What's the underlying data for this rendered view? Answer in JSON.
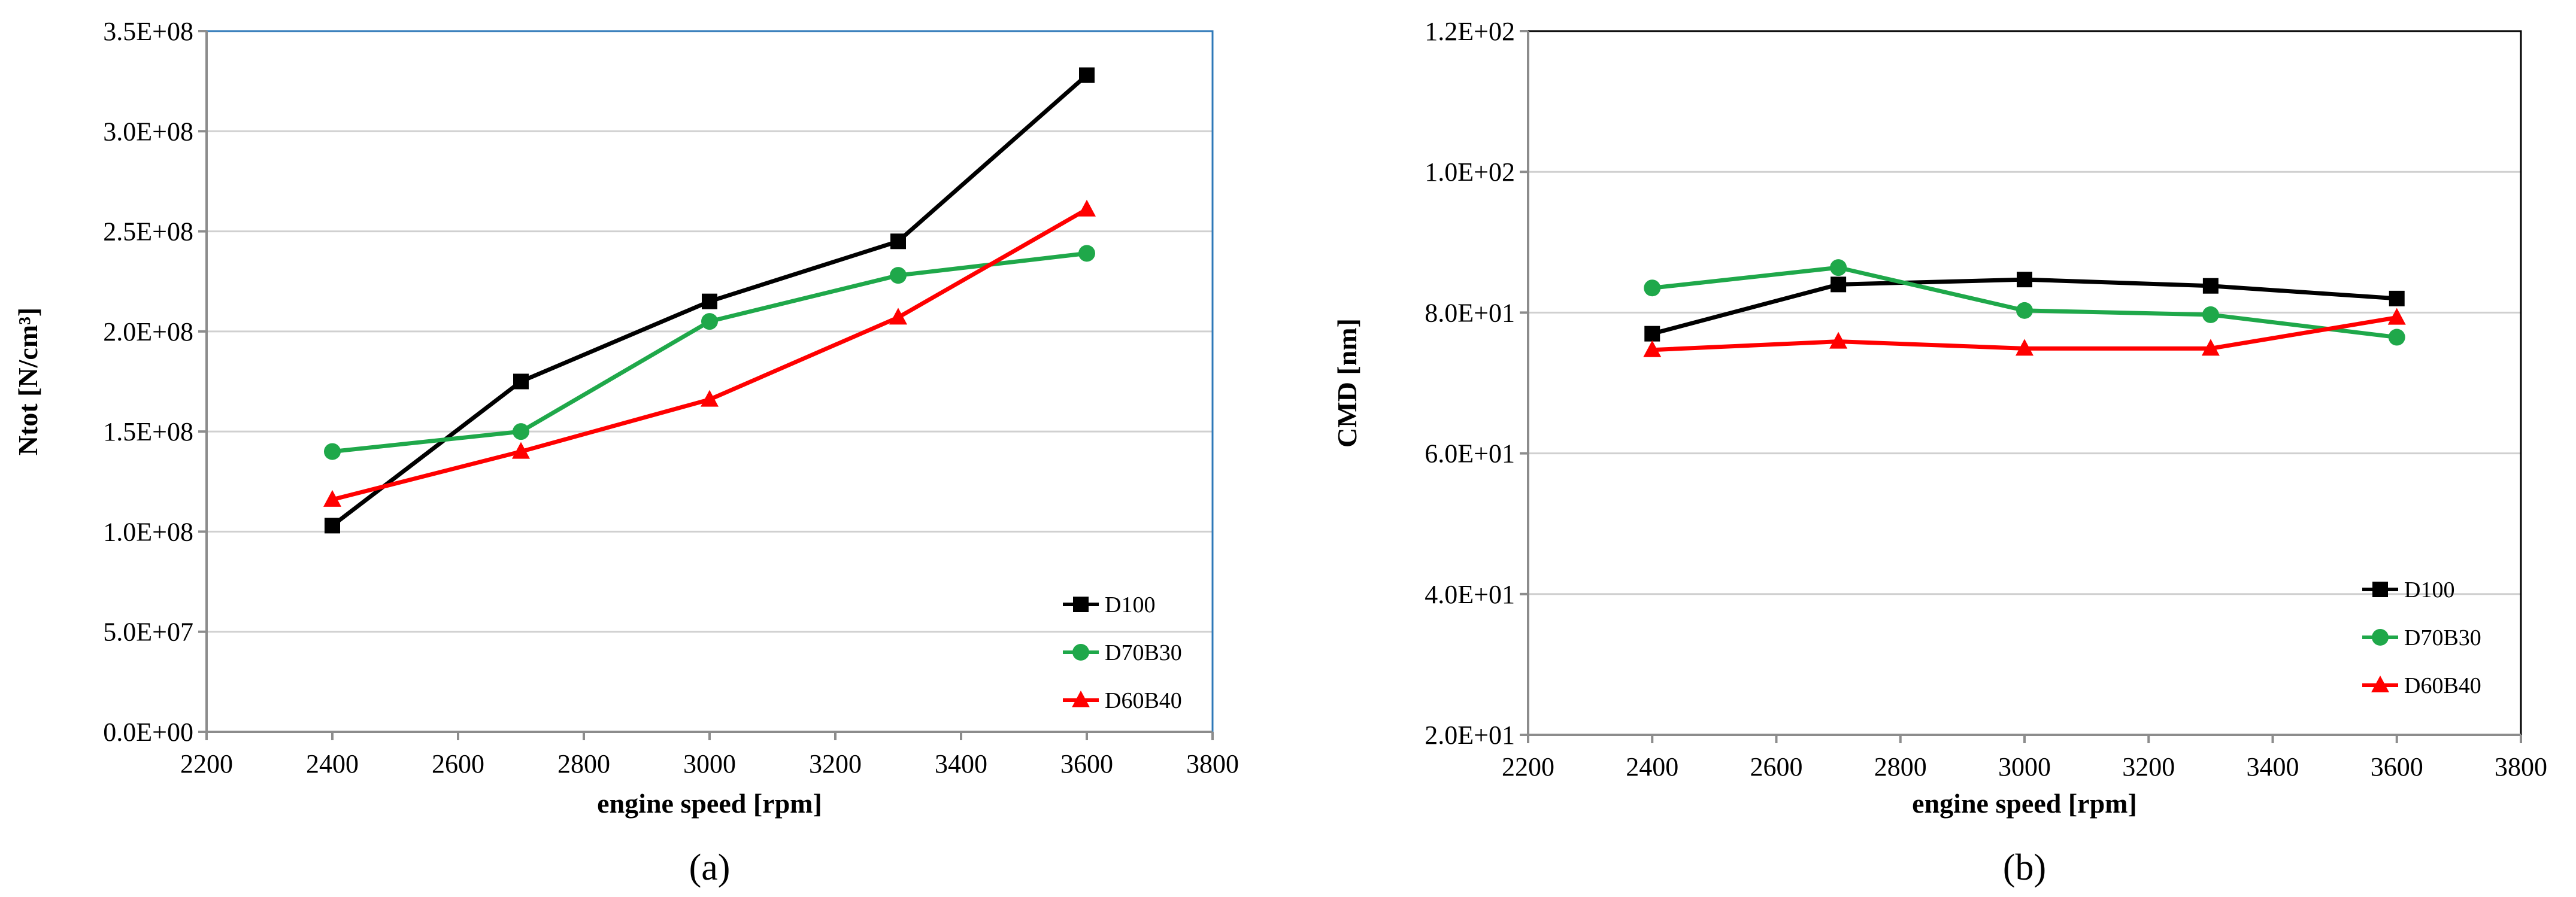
{
  "chart_data": [
    {
      "id": "a",
      "type": "line",
      "panel_label": "(a)",
      "xlabel": "engine speed [rpm]",
      "ylabel": "Ntot  [N/cm³]",
      "xlim": [
        2200,
        3800
      ],
      "ylim": [
        0,
        350000000
      ],
      "x_ticks": [
        2200,
        2400,
        2600,
        2800,
        3000,
        3200,
        3400,
        3600,
        3800
      ],
      "x_tick_labels": [
        "2200",
        "2400",
        "2600",
        "2800",
        "3000",
        "3200",
        "3400",
        "3600",
        "3800"
      ],
      "y_ticks": [
        0,
        50000000,
        100000000,
        150000000,
        200000000,
        250000000,
        300000000,
        350000000
      ],
      "y_tick_labels": [
        "0.0E+00",
        "5.0E+07",
        "1.0E+08",
        "1.5E+08",
        "2.0E+08",
        "2.5E+08",
        "3.0E+08",
        "3.5E+08"
      ],
      "grid": "horizontal",
      "frame": true,
      "legend_position": "bottom-right",
      "x": [
        2400,
        2700,
        3000,
        3300,
        3600
      ],
      "series": [
        {
          "name": "D100",
          "color": "#000000",
          "marker": "square",
          "values": [
            103000000,
            175000000,
            215000000,
            245000000,
            328000000
          ]
        },
        {
          "name": "D70B30",
          "color": "#1fa84a",
          "marker": "circle",
          "values": [
            140000000,
            150000000,
            205000000,
            228000000,
            239000000
          ]
        },
        {
          "name": "D60B40",
          "color": "#ff0000",
          "marker": "triangle",
          "values": [
            116000000,
            140000000,
            166000000,
            207000000,
            261000000
          ]
        }
      ]
    },
    {
      "id": "b",
      "type": "line",
      "panel_label": "(b)",
      "xlabel": "engine speed [rpm]",
      "ylabel": "CMD [nm]",
      "xlim": [
        2200,
        3800
      ],
      "ylim": [
        20,
        120
      ],
      "x_ticks": [
        2200,
        2400,
        2600,
        2800,
        3000,
        3200,
        3400,
        3600,
        3800
      ],
      "x_tick_labels": [
        "2200",
        "2400",
        "2600",
        "2800",
        "3000",
        "3200",
        "3400",
        "3600",
        "3800"
      ],
      "y_ticks": [
        20,
        40,
        60,
        80,
        100,
        120
      ],
      "y_tick_labels": [
        "2.0E+01",
        "4.0E+01",
        "6.0E+01",
        "8.0E+01",
        "1.0E+02",
        "1.2E+02"
      ],
      "grid": "horizontal",
      "frame": true,
      "legend_position": "bottom-right",
      "x": [
        2400,
        2700,
        3000,
        3300,
        3600
      ],
      "series": [
        {
          "name": "D100",
          "color": "#000000",
          "marker": "square",
          "values": [
            77,
            84,
            84.7,
            83.8,
            82
          ]
        },
        {
          "name": "D70B30",
          "color": "#1fa84a",
          "marker": "circle",
          "values": [
            83.5,
            86.4,
            80.3,
            79.7,
            76.5
          ]
        },
        {
          "name": "D60B40",
          "color": "#ff0000",
          "marker": "triangle",
          "values": [
            74.7,
            75.9,
            74.9,
            74.9,
            79.3
          ]
        }
      ]
    }
  ]
}
